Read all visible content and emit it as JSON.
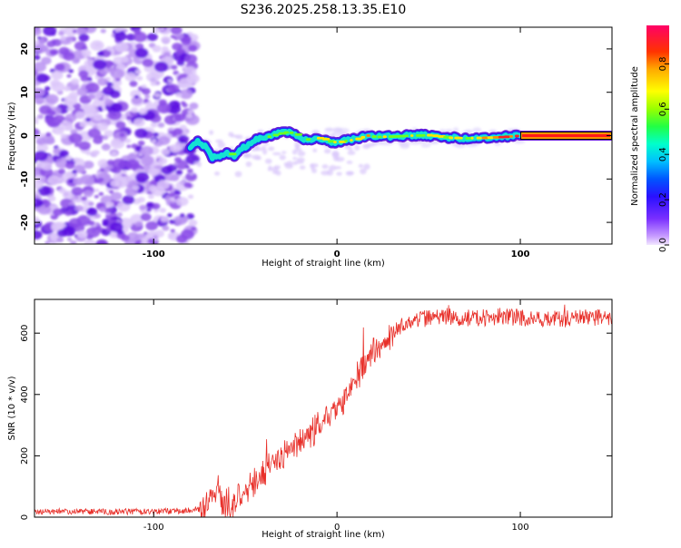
{
  "title": "S236.2025.258.13.35.E10",
  "colors": {
    "snr_line": "#e8302a",
    "ridge_purple": "#6a1fd8",
    "noise_purple": "#8a4ae8"
  },
  "chart_data": [
    {
      "type": "heatmap",
      "title": "S236.2025.258.13.35.E10",
      "xlabel": "Height of straight line (km)",
      "ylabel": "Frequency (Hz)",
      "xlim": [
        -165,
        150
      ],
      "ylim": [
        -25,
        25
      ],
      "xticks": [
        -100,
        0,
        100
      ],
      "yticks": [
        -20,
        -10,
        0,
        10,
        20
      ],
      "colorbar": {
        "label": "Normalized spectral amplitude",
        "range": [
          0,
          0.97
        ],
        "ticks": [
          0.0,
          0.2,
          0.4,
          0.6,
          0.8
        ]
      },
      "noise_region": {
        "x_from": -165,
        "x_to": -80
      },
      "ridge": {
        "x": [
          -80,
          -76,
          -72,
          -68,
          -64,
          -60,
          -56,
          -52,
          -48,
          -44,
          -40,
          -36,
          -32,
          -28,
          -24,
          -20,
          -16,
          -12,
          -8,
          -4,
          0,
          4,
          8,
          12,
          16,
          20,
          30,
          40,
          50,
          60,
          70,
          80,
          90,
          100,
          110,
          120,
          130,
          140,
          150
        ],
        "freq": [
          -2.5,
          -1.5,
          -2.5,
          -5,
          -5,
          -4,
          -5,
          -3,
          -2,
          -1,
          -0.5,
          0,
          0.5,
          0.8,
          0.5,
          -0.5,
          -1,
          -0.5,
          -0.8,
          -1.5,
          -1.5,
          -1.2,
          -1,
          -0.5,
          0,
          -0.3,
          -0.2,
          0,
          0.1,
          -0.5,
          -0.6,
          -0.5,
          -0.3,
          0,
          0,
          0,
          0,
          0,
          0
        ],
        "strength": [
          0.3,
          0.4,
          0.25,
          0.35,
          0.3,
          0.5,
          0.45,
          0.35,
          0.4,
          0.45,
          0.5,
          0.6,
          0.7,
          0.75,
          0.6,
          0.5,
          0.55,
          0.6,
          0.65,
          0.7,
          0.75,
          0.7,
          0.75,
          0.8,
          0.75,
          0.7,
          0.65,
          0.6,
          0.65,
          0.7,
          0.75,
          0.8,
          0.85,
          0.9,
          0.95,
          0.95,
          0.95,
          0.95,
          0.95
        ]
      }
    },
    {
      "type": "line",
      "xlabel": "Height of straight line (km)",
      "ylabel": "SNR (10 * v/v)",
      "xlim": [
        -165,
        150
      ],
      "ylim": [
        0,
        710
      ],
      "xticks": [
        -100,
        0,
        100
      ],
      "yticks": [
        0,
        200,
        400,
        600
      ],
      "series": [
        {
          "name": "SNR",
          "x": [
            -165,
            -140,
            -120,
            -100,
            -80,
            -72,
            -68,
            -65,
            -62,
            -58,
            -55,
            -50,
            -45,
            -40,
            -35,
            -30,
            -25,
            -20,
            -15,
            -10,
            -5,
            0,
            5,
            10,
            15,
            20,
            25,
            30,
            35,
            40,
            50,
            60,
            70,
            80,
            90,
            100,
            110,
            120,
            130,
            140,
            150
          ],
          "values": [
            18,
            18,
            18,
            18,
            22,
            30,
            70,
            100,
            40,
            20,
            60,
            80,
            110,
            150,
            170,
            200,
            220,
            240,
            270,
            290,
            320,
            350,
            400,
            450,
            500,
            540,
            570,
            600,
            620,
            640,
            650,
            655,
            650,
            650,
            655,
            650,
            648,
            645,
            648,
            650,
            650
          ]
        }
      ]
    }
  ]
}
